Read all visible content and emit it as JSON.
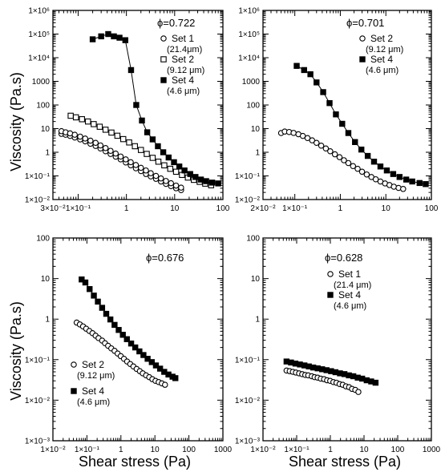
{
  "figure": {
    "ylabel": "Viscosity (Pa.s)",
    "xlabel": "Shear stress (Pa)"
  },
  "colors": {
    "ink": "#000000",
    "background": "#ffffff"
  },
  "chart_data": [
    {
      "type": "scatter",
      "panel": "top-left",
      "annotation": "ϕ=0.722",
      "xscale": "log",
      "yscale": "log",
      "xlim": [
        0.03,
        100
      ],
      "ylim": [
        0.01,
        1000000
      ],
      "xticks": [
        {
          "value": 0.03,
          "label": "3×10⁻²"
        },
        {
          "value": 0.1,
          "label": "1×10⁻¹"
        },
        {
          "value": 1,
          "label": "1"
        },
        {
          "value": 10,
          "label": "10"
        },
        {
          "value": 100,
          "label": "100"
        }
      ],
      "yticks": [
        {
          "value": 0.01,
          "label": "1×10⁻²"
        },
        {
          "value": 0.1,
          "label": "1×10⁻¹"
        },
        {
          "value": 1,
          "label": "1"
        },
        {
          "value": 10,
          "label": "10"
        },
        {
          "value": 100,
          "label": "100"
        },
        {
          "value": 1000,
          "label": "1000"
        },
        {
          "value": 10000,
          "label": "1×10⁴"
        },
        {
          "value": 100000,
          "label": "1×10⁵"
        },
        {
          "value": 1000000,
          "label": "1×10⁶"
        }
      ],
      "legend": [
        {
          "marker": "open-circle",
          "label": "Set 1",
          "sub": "(21.4μm)"
        },
        {
          "marker": "open-square",
          "label": "Set 2",
          "sub": "(9.12 μm)"
        },
        {
          "marker": "filled-square",
          "label": "Set 4",
          "sub": "(4.6 μm)"
        }
      ],
      "series": [
        {
          "legend_label": "Set 1",
          "marker": "open-circle",
          "line": false,
          "x": [
            0.045,
            0.055,
            0.068,
            0.085,
            0.11,
            0.14,
            0.18,
            0.23,
            0.29,
            0.37,
            0.47,
            0.6,
            0.76,
            0.97,
            1.23,
            1.57,
            2.0,
            2.54,
            3.2,
            4.1,
            5.2,
            6.6,
            8.4,
            10.7,
            13.6
          ],
          "y": [
            6.0,
            5.5,
            4.9,
            4.2,
            3.5,
            2.9,
            2.3,
            1.85,
            1.45,
            1.1,
            0.85,
            0.65,
            0.5,
            0.37,
            0.28,
            0.21,
            0.16,
            0.12,
            0.095,
            0.075,
            0.058,
            0.046,
            0.037,
            0.03,
            0.025
          ]
        },
        {
          "legend_label": "Set 1",
          "marker": "open-circle",
          "line": false,
          "x": [
            0.045,
            0.055,
            0.068,
            0.085,
            0.11,
            0.14,
            0.18,
            0.23,
            0.29,
            0.37,
            0.47,
            0.6,
            0.76,
            0.97,
            1.23,
            1.57,
            2.0,
            2.54,
            3.2,
            4.1,
            5.2,
            6.6,
            8.4,
            10.7,
            13.6
          ],
          "y": [
            7.8,
            7.0,
            6.3,
            5.5,
            4.6,
            3.8,
            3.1,
            2.5,
            1.95,
            1.5,
            1.15,
            0.88,
            0.66,
            0.5,
            0.38,
            0.29,
            0.22,
            0.17,
            0.13,
            0.1,
            0.078,
            0.061,
            0.049,
            0.039,
            0.032
          ]
        },
        {
          "legend_label": "Set 2",
          "marker": "open-square",
          "line": false,
          "x": [
            0.07,
            0.09,
            0.12,
            0.16,
            0.21,
            0.28,
            0.37,
            0.49,
            0.65,
            0.86,
            1.14,
            1.5,
            2.0,
            2.64,
            3.5,
            4.6,
            6.1,
            8.1,
            10.7,
            14.2,
            18.8,
            25,
            33,
            43,
            57
          ],
          "y": [
            35,
            30,
            25,
            20,
            15.5,
            12,
            9,
            6.8,
            5.0,
            3.6,
            2.6,
            1.8,
            1.25,
            0.85,
            0.58,
            0.4,
            0.28,
            0.2,
            0.15,
            0.11,
            0.085,
            0.068,
            0.056,
            0.047,
            0.04
          ]
        },
        {
          "legend_label": "Set 4",
          "marker": "filled-square",
          "line": true,
          "x": [
            0.2,
            0.3,
            0.42,
            0.55,
            0.72,
            0.95,
            1.25,
            1.6,
            2.1,
            2.7,
            3.5,
            4.5,
            5.8,
            7.5,
            9.7,
            12.5,
            16,
            21,
            27,
            35,
            45,
            60,
            80
          ],
          "y": [
            60000,
            80000,
            100000,
            80000,
            70000,
            55000,
            3000,
            100,
            22,
            7,
            3.5,
            1.8,
            1.0,
            0.6,
            0.38,
            0.25,
            0.17,
            0.12,
            0.09,
            0.07,
            0.06,
            0.052,
            0.048
          ]
        }
      ]
    },
    {
      "type": "scatter",
      "panel": "top-right",
      "annotation": "ϕ=0.701",
      "xscale": "log",
      "yscale": "log",
      "xlim": [
        0.02,
        100
      ],
      "ylim": [
        0.01,
        1000000
      ],
      "xticks": [
        {
          "value": 0.02,
          "label": "2×10⁻²"
        },
        {
          "value": 0.1,
          "label": "1×10⁻¹"
        },
        {
          "value": 1,
          "label": "1"
        },
        {
          "value": 10,
          "label": "10"
        },
        {
          "value": 100,
          "label": "100"
        }
      ],
      "yticks": [
        {
          "value": 0.01,
          "label": "1×10⁻²"
        },
        {
          "value": 0.1,
          "label": "1×10⁻¹"
        },
        {
          "value": 1,
          "label": "1"
        },
        {
          "value": 10,
          "label": "10"
        },
        {
          "value": 100,
          "label": "100"
        },
        {
          "value": 1000,
          "label": "1000"
        },
        {
          "value": 10000,
          "label": "1×10⁴"
        },
        {
          "value": 100000,
          "label": "1×10⁵"
        },
        {
          "value": 1000000,
          "label": "1×10⁶"
        }
      ],
      "legend": [
        {
          "marker": "open-circle",
          "label": "Set 2",
          "sub": "(9.12 μm)"
        },
        {
          "marker": "filled-square",
          "label": "Set 4",
          "sub": "(4.6 μm)"
        }
      ],
      "series": [
        {
          "legend_label": "Set 2",
          "marker": "open-circle",
          "line": false,
          "x": [
            0.05,
            0.06,
            0.075,
            0.094,
            0.12,
            0.15,
            0.19,
            0.24,
            0.3,
            0.38,
            0.48,
            0.6,
            0.76,
            0.96,
            1.2,
            1.5,
            1.9,
            2.4,
            3.0,
            3.8,
            4.8,
            6.0,
            7.6,
            9.6,
            12,
            15,
            19,
            24
          ],
          "y": [
            6.5,
            7.5,
            7.2,
            6.6,
            5.8,
            4.9,
            4.0,
            3.2,
            2.5,
            1.9,
            1.45,
            1.1,
            0.82,
            0.62,
            0.46,
            0.35,
            0.26,
            0.2,
            0.15,
            0.115,
            0.09,
            0.072,
            0.058,
            0.048,
            0.041,
            0.035,
            0.031,
            0.028
          ]
        },
        {
          "legend_label": "Set 4",
          "marker": "filled-square",
          "line": true,
          "x": [
            0.11,
            0.16,
            0.22,
            0.3,
            0.42,
            0.58,
            0.8,
            1.1,
            1.5,
            2.1,
            2.9,
            4.0,
            5.5,
            7.6,
            10.5,
            14.5,
            20,
            28,
            38,
            55,
            75
          ],
          "y": [
            4500,
            3000,
            2000,
            900,
            350,
            120,
            40,
            16,
            6.5,
            2.7,
            1.3,
            0.7,
            0.4,
            0.25,
            0.17,
            0.12,
            0.09,
            0.07,
            0.058,
            0.05,
            0.045
          ]
        }
      ]
    },
    {
      "type": "scatter",
      "panel": "bottom-left",
      "annotation": "ϕ=0.676",
      "xscale": "log",
      "yscale": "log",
      "xlim": [
        0.01,
        1000
      ],
      "ylim": [
        0.001,
        100
      ],
      "xticks": [
        {
          "value": 0.01,
          "label": "1×10⁻²"
        },
        {
          "value": 0.1,
          "label": "1×10⁻¹"
        },
        {
          "value": 1,
          "label": "1"
        },
        {
          "value": 10,
          "label": "10"
        },
        {
          "value": 100,
          "label": "100"
        },
        {
          "value": 1000,
          "label": "1000"
        }
      ],
      "yticks": [
        {
          "value": 0.001,
          "label": "1×10⁻³"
        },
        {
          "value": 0.01,
          "label": "1×10⁻²"
        },
        {
          "value": 0.1,
          "label": "1×10⁻¹"
        },
        {
          "value": 1,
          "label": "1"
        },
        {
          "value": 10,
          "label": "10"
        },
        {
          "value": 100,
          "label": "100"
        }
      ],
      "legend": [
        {
          "marker": "open-circle",
          "label": "Set 2",
          "sub": "(9.12 μm)"
        },
        {
          "marker": "filled-square",
          "label": "Set 4",
          "sub": "(4.6 μm)"
        }
      ],
      "series": [
        {
          "legend_label": "Set 2",
          "marker": "open-circle",
          "line": false,
          "x": [
            0.05,
            0.062,
            0.077,
            0.095,
            0.118,
            0.146,
            0.18,
            0.22,
            0.28,
            0.34,
            0.42,
            0.52,
            0.65,
            0.8,
            0.99,
            1.23,
            1.52,
            1.88,
            2.33,
            2.9,
            3.6,
            4.4,
            5.5,
            6.8,
            8.4,
            10.4,
            12.9,
            16,
            19.8
          ],
          "y": [
            0.82,
            0.74,
            0.66,
            0.58,
            0.51,
            0.45,
            0.39,
            0.34,
            0.295,
            0.255,
            0.22,
            0.19,
            0.165,
            0.142,
            0.122,
            0.105,
            0.09,
            0.078,
            0.068,
            0.059,
            0.052,
            0.046,
            0.041,
            0.037,
            0.033,
            0.03,
            0.028,
            0.026,
            0.024
          ]
        },
        {
          "legend_label": "Set 4",
          "marker": "filled-square",
          "line": true,
          "x": [
            0.07,
            0.09,
            0.12,
            0.16,
            0.21,
            0.28,
            0.37,
            0.49,
            0.65,
            0.86,
            1.14,
            1.5,
            2.0,
            2.64,
            3.5,
            4.6,
            6.1,
            8.1,
            10.7,
            14.2,
            18.8,
            25,
            33,
            40
          ],
          "y": [
            9.5,
            8.0,
            5.5,
            3.8,
            2.7,
            1.9,
            1.35,
            0.98,
            0.72,
            0.54,
            0.41,
            0.32,
            0.25,
            0.2,
            0.16,
            0.13,
            0.105,
            0.087,
            0.072,
            0.06,
            0.05,
            0.043,
            0.038,
            0.035
          ]
        }
      ]
    },
    {
      "type": "scatter",
      "panel": "bottom-right",
      "annotation": "ϕ=0.628",
      "xscale": "log",
      "yscale": "log",
      "xlim": [
        0.01,
        1000
      ],
      "ylim": [
        0.001,
        100
      ],
      "xticks": [
        {
          "value": 0.01,
          "label": "1×10⁻²"
        },
        {
          "value": 0.1,
          "label": "1×10⁻¹"
        },
        {
          "value": 1,
          "label": "1"
        },
        {
          "value": 10,
          "label": "10"
        },
        {
          "value": 100,
          "label": "100"
        },
        {
          "value": 1000,
          "label": "1000"
        }
      ],
      "yticks": [
        {
          "value": 0.001,
          "label": "1×10⁻³"
        },
        {
          "value": 0.01,
          "label": "1×10⁻²"
        },
        {
          "value": 0.1,
          "label": "1×10⁻¹"
        },
        {
          "value": 1,
          "label": "1"
        },
        {
          "value": 10,
          "label": "10"
        },
        {
          "value": 100,
          "label": "100"
        }
      ],
      "legend": [
        {
          "marker": "open-circle",
          "label": "Set 1",
          "sub": "(21.4 μm)"
        },
        {
          "marker": "filled-square",
          "label": "Set 4",
          "sub": "(4.6 μm)"
        }
      ],
      "series": [
        {
          "legend_label": "Set 1",
          "marker": "open-circle",
          "line": false,
          "x": [
            0.05,
            0.062,
            0.077,
            0.095,
            0.118,
            0.146,
            0.18,
            0.22,
            0.28,
            0.34,
            0.42,
            0.52,
            0.65,
            0.8,
            0.99,
            1.23,
            1.52,
            1.88,
            2.33,
            2.9,
            3.6,
            4.4,
            5.5,
            6.8
          ],
          "y": [
            0.054,
            0.052,
            0.05,
            0.048,
            0.046,
            0.044,
            0.042,
            0.041,
            0.039,
            0.037,
            0.036,
            0.034,
            0.033,
            0.031,
            0.03,
            0.028,
            0.027,
            0.025,
            0.024,
            0.022,
            0.021,
            0.019,
            0.018,
            0.016
          ]
        },
        {
          "legend_label": "Set 4",
          "marker": "filled-square",
          "line": false,
          "x": [
            0.05,
            0.068,
            0.092,
            0.125,
            0.17,
            0.23,
            0.31,
            0.42,
            0.57,
            0.77,
            1.05,
            1.42,
            1.93,
            2.62,
            3.55,
            4.8,
            6.5,
            8.8,
            12,
            16.3,
            22
          ],
          "y": [
            0.09,
            0.085,
            0.08,
            0.076,
            0.072,
            0.068,
            0.064,
            0.061,
            0.058,
            0.055,
            0.052,
            0.049,
            0.046,
            0.044,
            0.041,
            0.039,
            0.036,
            0.034,
            0.031,
            0.029,
            0.027
          ]
        }
      ]
    }
  ]
}
